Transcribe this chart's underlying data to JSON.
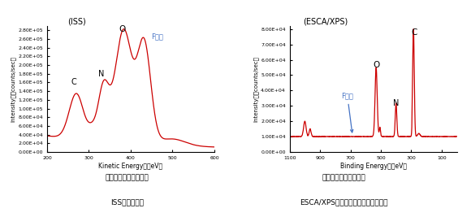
{
  "left_title": "(ISS)",
  "left_xlabel": "Kinetic Energy　（eV）",
  "left_ylabel": "Intensity　（counts/sec）",
  "left_xlim": [
    200,
    600
  ],
  "left_ylim": [
    0,
    290000.0
  ],
  "left_yticks": [
    0,
    20000.0,
    40000.0,
    60000.0,
    80000.0,
    100000.0,
    120000.0,
    140000.0,
    160000.0,
    180000.0,
    200000.0,
    220000.0,
    240000.0,
    260000.0,
    280000.0
  ],
  "left_xticks": [
    200,
    300,
    400,
    500,
    600
  ],
  "right_title": "(ESCA/XPS)",
  "right_xlabel": "Binding Energy　（eV）",
  "right_ylabel": "Intensity　（counts/sec）",
  "right_xlim": [
    1100,
    0
  ],
  "right_ylim": [
    0,
    82000.0
  ],
  "right_yticks": [
    0,
    10000.0,
    20000.0,
    30000.0,
    40000.0,
    50000.0,
    60000.0,
    70000.0,
    80000.0
  ],
  "right_xticks": [
    1100,
    900,
    700,
    500,
    300,
    100
  ],
  "line_color": "#cc0000",
  "annot_color_blue": "#4472C4",
  "annot_color_black": "#000000",
  "caption_left_line1": "ポリイミドフィルムの",
  "caption_left_line2": "ISSスペクトル",
  "caption_right_line1": "ポリイミドフィルムの",
  "caption_right_line2": "ESCA/XPSワイドスキャンスペクトル"
}
